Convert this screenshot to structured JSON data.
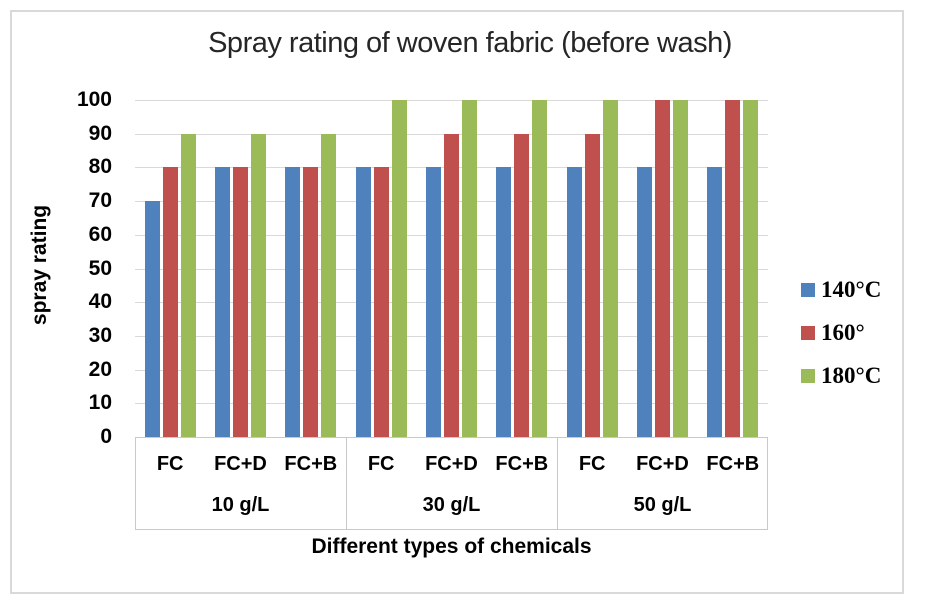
{
  "chart_data": {
    "type": "bar",
    "title": "Spray rating of woven fabric (before wash)",
    "xlabel": "Different types of chemicals",
    "ylabel": "spray rating",
    "ylim": [
      0,
      100
    ],
    "ytick_step": 10,
    "grid": true,
    "legend_position": "right",
    "groups": [
      "10 g/L",
      "30 g/L",
      "50 g/L"
    ],
    "categories": [
      "FC",
      "FC+D",
      "FC+B",
      "FC",
      "FC+D",
      "FC+B",
      "FC",
      "FC+D",
      "FC+B"
    ],
    "series": [
      {
        "name": "140°C",
        "color": "#4F81BD",
        "values": [
          70,
          80,
          80,
          80,
          80,
          80,
          80,
          80,
          80
        ]
      },
      {
        "name": "160°",
        "color": "#C0504D",
        "values": [
          80,
          80,
          80,
          80,
          90,
          90,
          90,
          100,
          100
        ]
      },
      {
        "name": "180°C",
        "color": "#9BBB59",
        "values": [
          90,
          90,
          90,
          100,
          100,
          100,
          100,
          100,
          100
        ]
      }
    ],
    "colors": {
      "gridline": "#d9d9d9",
      "axis_box_border": "#c9c9c9",
      "frame_border": "#d9d9d9",
      "title_text": "#262626",
      "label_text": "#000000"
    }
  }
}
